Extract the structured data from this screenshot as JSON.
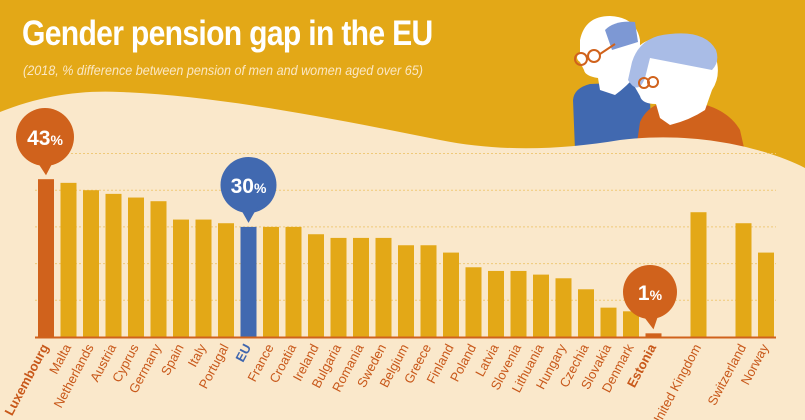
{
  "header": {
    "title": "Gender pension gap in the EU",
    "subtitle": "(2018, % difference between pension of men and women aged over 65)"
  },
  "illustration": {
    "name": "elderly-couple-illustration",
    "description": "Elderly man with glasses in blue and elderly woman with glasses in orange"
  },
  "colors": {
    "background": "#E3A817",
    "panel": "#FAE8CB",
    "bar": "#E3A817",
    "highlight_max": "#D0621C",
    "highlight_eu": "#4169B0",
    "label": "#C8581A",
    "gridline": "#EFC978"
  },
  "chart_data": {
    "type": "bar",
    "title": "Gender pension gap in the EU",
    "subtitle": "(2018, % difference between pension of men and women aged over 65)",
    "xlabel": "",
    "ylabel": "",
    "unit": "%",
    "ylim": [
      0,
      50
    ],
    "gridlines": [
      10,
      20,
      30,
      40,
      50
    ],
    "grid": true,
    "legend": "none",
    "categories": [
      "Luxembourg",
      "Malta",
      "Netherlands",
      "Austria",
      "Cyprus",
      "Germany",
      "Spain",
      "Italy",
      "Portugal",
      "EU",
      "France",
      "Croatia",
      "Ireland",
      "Bulgaria",
      "Romania",
      "Sweden",
      "Belgium",
      "Greece",
      "Finland",
      "Poland",
      "Latvia",
      "Slovenia",
      "Lithuania",
      "Hungary",
      "Czechia",
      "Slovakia",
      "Denmark",
      "Estonia",
      "",
      "United Kingdom",
      "",
      "Switzerland",
      "Norway"
    ],
    "values": [
      43,
      42,
      40,
      39,
      38,
      37,
      32,
      32,
      31,
      30,
      30,
      30,
      28,
      27,
      27,
      27,
      25,
      25,
      23,
      19,
      18,
      18,
      17,
      16,
      13,
      8,
      7,
      1,
      null,
      34,
      null,
      31,
      23
    ],
    "highlights": {
      "Luxembourg": {
        "role": "max",
        "label": "43%",
        "value": "43",
        "suffix": "%"
      },
      "EU": {
        "role": "eu",
        "label": "30%",
        "value": "30",
        "suffix": "%"
      },
      "Estonia": {
        "role": "min",
        "label": "1%",
        "value": "1",
        "suffix": "%"
      }
    }
  }
}
